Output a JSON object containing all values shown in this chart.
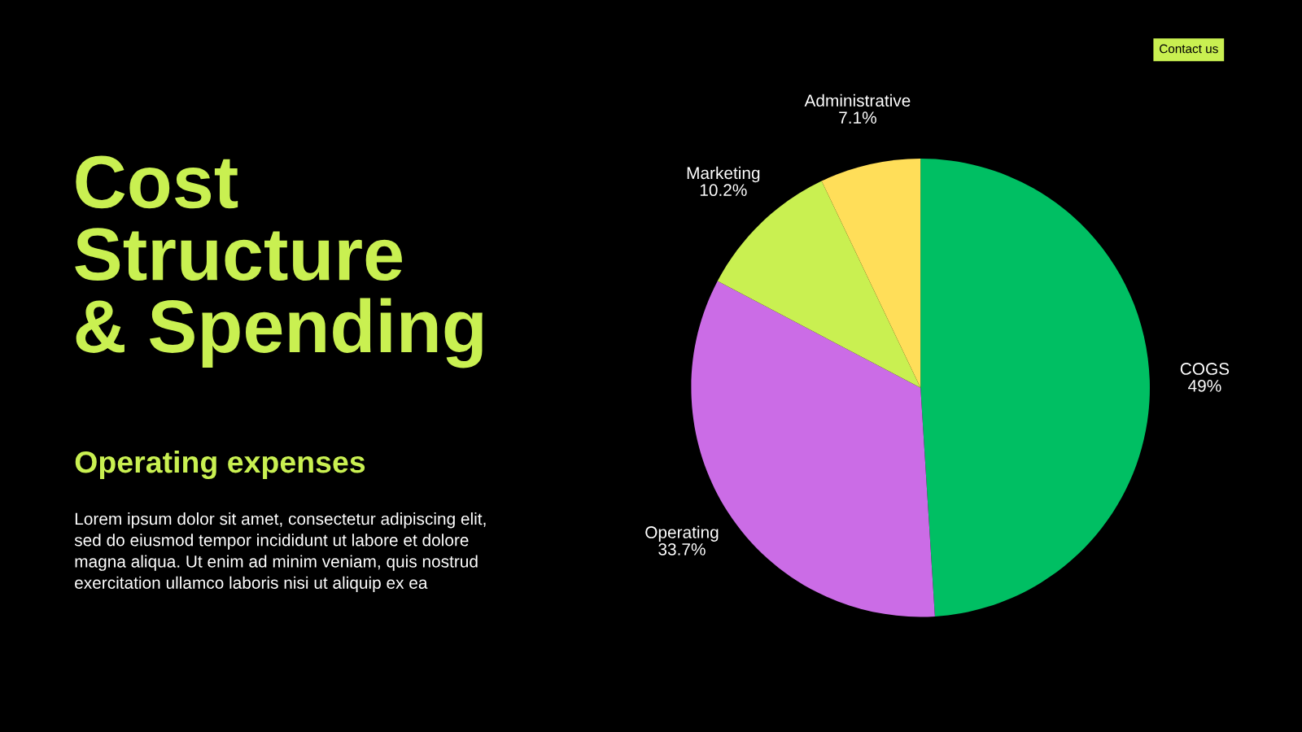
{
  "chart_data": {
    "type": "pie",
    "title": "Cost\nStructure\n& Spending",
    "subtitle": "Operating expenses",
    "categories": [
      "COGS",
      "Operating",
      "Marketing",
      "Administrative"
    ],
    "values": [
      49,
      33.7,
      10.2,
      7.1
    ],
    "value_labels": [
      "49%",
      "33.7%",
      "10.2%",
      "7.1%"
    ],
    "colors": [
      "#00bf63",
      "#cb6ce6",
      "#c9f051",
      "#ffde59"
    ],
    "annotations": [
      "Lorem ipsum dolor sit amet, consectetur adipiscing elit,\nsed do eiusmod tempor incididunt ut labore et dolore\nmagna aliqua. Ut enim ad minim veniam, quis nostrud\nexercitation ullamco laboris nisi ut aliquip ex ea",
      "Contact us"
    ],
    "legend": false
  }
}
